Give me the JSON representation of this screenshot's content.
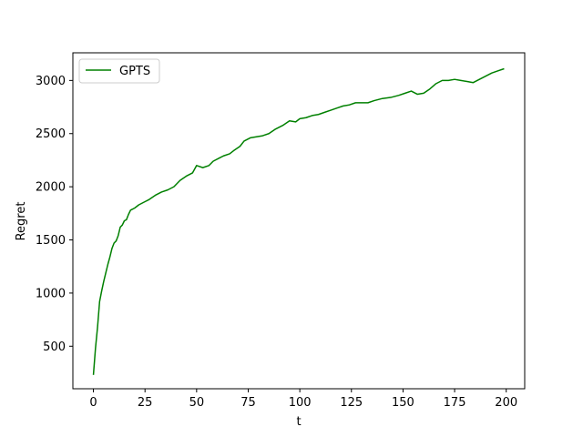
{
  "chart_data": {
    "type": "line",
    "xlabel": "t",
    "ylabel": "Regret",
    "xlim": [
      -9.95,
      208.95
    ],
    "ylim": [
      100,
      3260
    ],
    "xticks": [
      0,
      25,
      50,
      75,
      100,
      125,
      150,
      175,
      200
    ],
    "yticks": [
      500,
      1000,
      1500,
      2000,
      2500,
      3000
    ],
    "grid": false,
    "legend_position": "upper-left",
    "series": [
      {
        "name": "GPTS",
        "color": "#008000",
        "x": [
          0,
          1,
          2,
          3,
          4,
          5,
          6,
          7,
          8,
          9,
          10,
          11,
          12,
          13,
          14,
          15,
          16,
          17,
          18,
          19,
          20,
          22,
          25,
          27,
          30,
          33,
          36,
          39,
          42,
          45,
          48,
          50,
          53,
          56,
          58,
          61,
          63,
          66,
          68,
          71,
          73,
          76,
          79,
          82,
          85,
          88,
          92,
          95,
          98,
          100,
          103,
          106,
          109,
          112,
          115,
          118,
          121,
          124,
          127,
          130,
          133,
          136,
          140,
          144,
          148,
          151,
          154,
          157,
          160,
          163,
          166,
          169,
          172,
          175,
          178,
          181,
          184,
          187,
          190,
          193,
          196,
          199
        ],
        "y": [
          230,
          480,
          680,
          920,
          1020,
          1110,
          1190,
          1270,
          1340,
          1420,
          1470,
          1490,
          1540,
          1620,
          1640,
          1680,
          1690,
          1740,
          1780,
          1790,
          1800,
          1830,
          1860,
          1880,
          1920,
          1950,
          1970,
          2000,
          2060,
          2100,
          2130,
          2200,
          2180,
          2200,
          2240,
          2270,
          2290,
          2310,
          2340,
          2380,
          2430,
          2460,
          2470,
          2480,
          2500,
          2540,
          2580,
          2620,
          2610,
          2640,
          2650,
          2670,
          2680,
          2700,
          2720,
          2740,
          2760,
          2770,
          2790,
          2790,
          2790,
          2810,
          2830,
          2840,
          2860,
          2880,
          2900,
          2870,
          2880,
          2920,
          2970,
          3000,
          3000,
          3010,
          3000,
          2990,
          2980,
          3010,
          3040,
          3070,
          3090,
          3110
        ]
      }
    ]
  }
}
